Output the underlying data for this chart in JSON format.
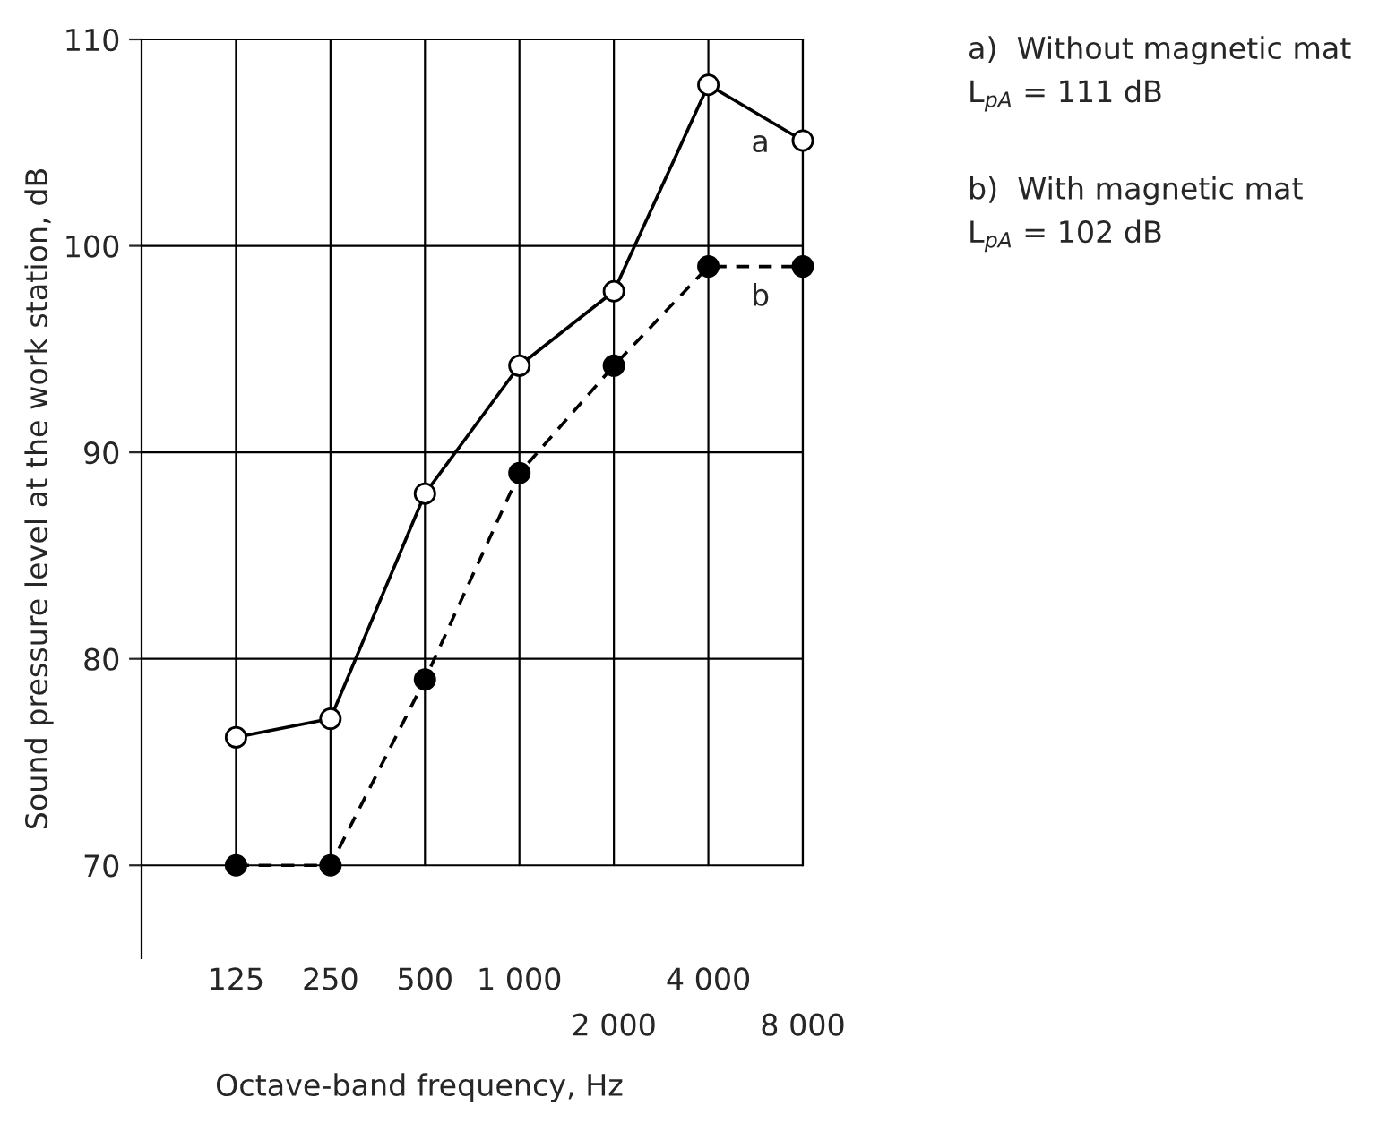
{
  "chart_data": {
    "type": "line",
    "xlabel": "Octave-band frequency, Hz",
    "ylabel": "Sound pressure level at the work station, dB",
    "categories": [
      "125",
      "250",
      "500",
      "1 000",
      "2 000",
      "4 000",
      "8 000"
    ],
    "series": [
      {
        "name": "a",
        "color": "#000000",
        "values": [
          76.2,
          77.1,
          88.0,
          94.2,
          97.8,
          107.8,
          105.1
        ],
        "line_style": "solid",
        "marker": "circle"
      },
      {
        "name": "b",
        "color": "#000000",
        "values": [
          70.0,
          70.0,
          79.0,
          89.0,
          94.2,
          99.0,
          99.0
        ],
        "line_style": "dashed",
        "marker": "circle"
      }
    ],
    "ylim": [
      65.5,
      110
    ],
    "yticks": [
      70,
      80,
      90,
      100,
      110
    ],
    "grid": true,
    "legend": false,
    "annotations": [
      "a)  Without magnetic mat",
      "L$_{pA}$ = 111 dB",
      "b)  With magnetic mat",
      "L$_{pA}$ = 102 dB"
    ]
  }
}
